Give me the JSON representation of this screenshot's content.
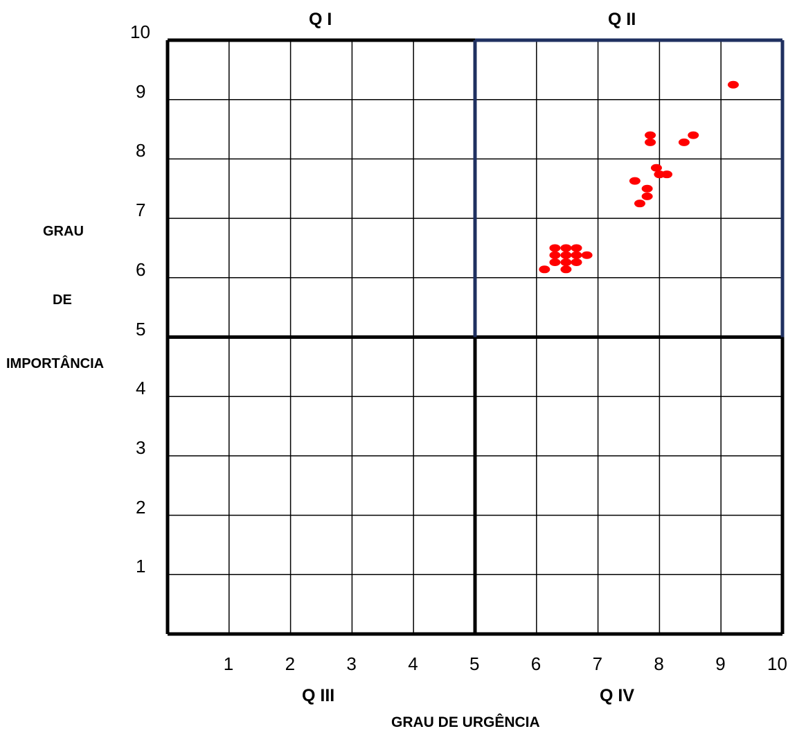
{
  "quadrants": {
    "q1": "Q I",
    "q2": "Q II",
    "q3": "Q III",
    "q4": "Q IV"
  },
  "ylabel_lines": [
    "GRAU",
    "DE",
    "IMPORTÂNCIA"
  ],
  "colors": {
    "points": "#ff0000",
    "q2_border": "#1f3060",
    "grid": "#000000"
  },
  "chart_data": {
    "type": "scatter",
    "xlabel": "GRAU DE URGÊNCIA",
    "ylabel": "GRAU DE IMPORTÂNCIA",
    "xlim": [
      0,
      10
    ],
    "ylim": [
      0,
      10
    ],
    "xticks": [
      "1",
      "2",
      "3",
      "4",
      "5",
      "6",
      "7",
      "8",
      "9",
      "10"
    ],
    "yticks": [
      "1",
      "2",
      "3",
      "4",
      "5",
      "6",
      "7",
      "8",
      "9",
      "10"
    ],
    "grid": true,
    "points": [
      {
        "x": 9.2,
        "y": 9.25
      },
      {
        "x": 7.85,
        "y": 8.4
      },
      {
        "x": 7.85,
        "y": 8.28
      },
      {
        "x": 8.55,
        "y": 8.4
      },
      {
        "x": 8.4,
        "y": 8.28
      },
      {
        "x": 7.95,
        "y": 7.85
      },
      {
        "x": 8.0,
        "y": 7.74
      },
      {
        "x": 8.12,
        "y": 7.74
      },
      {
        "x": 7.6,
        "y": 7.63
      },
      {
        "x": 7.8,
        "y": 7.5
      },
      {
        "x": 7.8,
        "y": 7.37
      },
      {
        "x": 7.68,
        "y": 7.25
      },
      {
        "x": 6.3,
        "y": 6.5
      },
      {
        "x": 6.48,
        "y": 6.5
      },
      {
        "x": 6.65,
        "y": 6.5
      },
      {
        "x": 6.3,
        "y": 6.38
      },
      {
        "x": 6.48,
        "y": 6.38
      },
      {
        "x": 6.65,
        "y": 6.38
      },
      {
        "x": 6.82,
        "y": 6.38
      },
      {
        "x": 6.3,
        "y": 6.26
      },
      {
        "x": 6.48,
        "y": 6.26
      },
      {
        "x": 6.65,
        "y": 6.26
      },
      {
        "x": 6.13,
        "y": 6.14
      },
      {
        "x": 6.48,
        "y": 6.14
      }
    ]
  }
}
